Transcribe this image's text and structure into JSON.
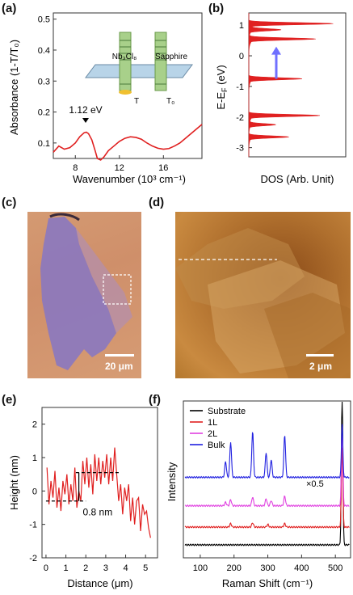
{
  "panels": {
    "a": "(a)",
    "b": "(b)",
    "c": "(c)",
    "d": "(d)",
    "e": "(e)",
    "f": "(f)"
  },
  "panel_a": {
    "ylabel": "Absorbance (1-T/T₀)",
    "xlabel": "Wavenumber (10³ cm⁻¹)",
    "xticks": [
      "8",
      "12",
      "16"
    ],
    "yticks": [
      "0.1",
      "0.2",
      "0.3",
      "0.4",
      "0.5"
    ],
    "peak_label": "1.12 eV",
    "inset": {
      "sample": "Nb₃Cl₈",
      "substrate": "Sapphire",
      "T": "T",
      "T0": "T₀"
    },
    "curve_color": "#e02020"
  },
  "panel_b": {
    "ylabel": "E-E",
    "ylabel_sub": "F",
    "ylabel_unit": " (eV)",
    "xlabel": "DOS (Arb. Unit)",
    "yticks": [
      "1",
      "0",
      "-1",
      "-2",
      "-3"
    ],
    "arrow_color": "#7070ff"
  },
  "panel_c": {
    "scale": "20 μm"
  },
  "panel_d": {
    "scale": "2 μm"
  },
  "panel_e": {
    "ylabel": "Height (nm)",
    "xlabel": "Distance (μm)",
    "xticks": [
      "0",
      "1",
      "2",
      "3",
      "4",
      "5"
    ],
    "yticks": [
      "2",
      "1",
      "0",
      "-1",
      "-2"
    ],
    "step_label": "0.8 nm"
  },
  "panel_f": {
    "ylabel": "Intensity",
    "xlabel": "Raman Shift (cm⁻¹)",
    "xticks": [
      "100",
      "200",
      "300",
      "400",
      "500"
    ],
    "scale_note": "×0.5",
    "legend": [
      {
        "label": "Substrate",
        "color": "#000000"
      },
      {
        "label": "1L",
        "color": "#e02020"
      },
      {
        "label": "2L",
        "color": "#e040e0"
      },
      {
        "label": "Bulk",
        "color": "#2020e0"
      }
    ]
  },
  "chart_data": [
    {
      "type": "line",
      "panel": "a",
      "xlabel": "Wavenumber (10³ cm⁻¹)",
      "ylabel": "Absorbance (1-T/T₀)",
      "xlim": [
        6,
        19.5
      ],
      "ylim": [
        0.05,
        0.52
      ],
      "series": [
        {
          "x": [
            6,
            6.5,
            7,
            7.5,
            8,
            8.4,
            8.8,
            9.0,
            9.2,
            9.5,
            9.8,
            10.0,
            10.3,
            10.6,
            11,
            11.5,
            12,
            12.5,
            13,
            13.5,
            14,
            14.5,
            15,
            15.5,
            16,
            16.5,
            17,
            17.5,
            18,
            18.5,
            19,
            19.5
          ],
          "y": [
            0.07,
            0.09,
            0.08,
            0.085,
            0.1,
            0.12,
            0.133,
            0.135,
            0.13,
            0.11,
            0.075,
            0.05,
            0.045,
            0.055,
            0.075,
            0.09,
            0.105,
            0.115,
            0.12,
            0.118,
            0.112,
            0.1,
            0.09,
            0.083,
            0.08,
            0.082,
            0.09,
            0.1,
            0.115,
            0.13,
            0.145,
            0.16
          ]
        }
      ]
    },
    {
      "type": "area",
      "panel": "b",
      "ylabel": "E-E_F (eV)",
      "xlabel": "DOS (Arb. Unit)",
      "ylim": [
        -3.3,
        1.4
      ],
      "peaks": [
        {
          "e": 1.05,
          "h": 0.95
        },
        {
          "e": 0.85,
          "h": 0.35
        },
        {
          "e": 0.55,
          "h": 0.75
        },
        {
          "e": -0.75,
          "h": 0.6
        },
        {
          "e": -1.95,
          "h": 0.8
        },
        {
          "e": -2.25,
          "h": 0.3
        },
        {
          "e": -2.65,
          "h": 0.45
        }
      ]
    },
    {
      "type": "line",
      "panel": "e",
      "xlabel": "Distance (μm)",
      "ylabel": "Height (nm)",
      "xlim": [
        -0.2,
        5.6
      ],
      "ylim": [
        -2,
        2.5
      ],
      "series": [
        {
          "x": [
            0.05,
            0.15,
            0.25,
            0.35,
            0.45,
            0.55,
            0.65,
            0.75,
            0.85,
            0.95,
            1.05,
            1.15,
            1.25,
            1.35,
            1.45,
            1.55,
            1.65,
            1.75,
            1.85,
            1.95,
            2.05,
            2.15,
            2.25,
            2.35,
            2.45,
            2.55,
            2.65,
            2.75,
            2.85,
            2.95,
            3.05,
            3.15,
            3.25,
            3.35,
            3.45,
            3.55,
            3.65,
            3.75,
            3.85,
            3.95,
            4.05,
            4.15,
            4.25,
            4.35,
            4.45,
            4.55,
            4.65,
            4.75,
            4.85,
            4.95,
            5.05,
            5.15,
            5.25
          ],
          "y": [
            0.7,
            -0.4,
            0.3,
            -0.2,
            0.6,
            -0.5,
            0.1,
            -0.6,
            0.3,
            -0.1,
            0.5,
            -0.4,
            0.2,
            -0.3,
            0.7,
            -0.5,
            0.0,
            -0.3,
            0.9,
            0.2,
            1.0,
            0.1,
            0.8,
            -0.1,
            1.1,
            0.3,
            1.0,
            0.2,
            0.9,
            0.4,
            1.1,
            0.2,
            1.0,
            0.3,
            1.3,
            0.5,
            -0.3,
            0.2,
            -0.7,
            0.1,
            -0.3,
            0.2,
            -0.9,
            -0.2,
            -1.0,
            -0.3,
            -0.2,
            -1.2,
            -0.4,
            -0.7,
            -0.6,
            -1.1,
            -1.4
          ]
        }
      ],
      "steps": {
        "low": -0.3,
        "high": 0.55
      }
    },
    {
      "type": "line",
      "panel": "f",
      "xlabel": "Raman Shift (cm⁻¹)",
      "ylabel": "Intensity",
      "xlim": [
        50,
        545
      ],
      "series": [
        {
          "name": "Substrate",
          "offset": 0.0,
          "peaks": []
        },
        {
          "name": "1L",
          "offset": 1.0,
          "peaks": [
            [
              190,
              0.2
            ],
            [
              255,
              0.25
            ],
            [
              300,
              0.15
            ],
            [
              350,
              0.2
            ]
          ]
        },
        {
          "name": "2L",
          "offset": 2.2,
          "peaks": [
            [
              175,
              0.2
            ],
            [
              190,
              0.35
            ],
            [
              255,
              0.5
            ],
            [
              295,
              0.4
            ],
            [
              310,
              0.3
            ],
            [
              350,
              0.55
            ]
          ]
        },
        {
          "name": "Bulk",
          "offset": 3.8,
          "peaks": [
            [
              175,
              0.9
            ],
            [
              190,
              2.0
            ],
            [
              255,
              2.6
            ],
            [
              295,
              1.4
            ],
            [
              310,
              1.0
            ],
            [
              350,
              2.4
            ]
          ]
        }
      ],
      "silicon_peak": 520
    }
  ]
}
